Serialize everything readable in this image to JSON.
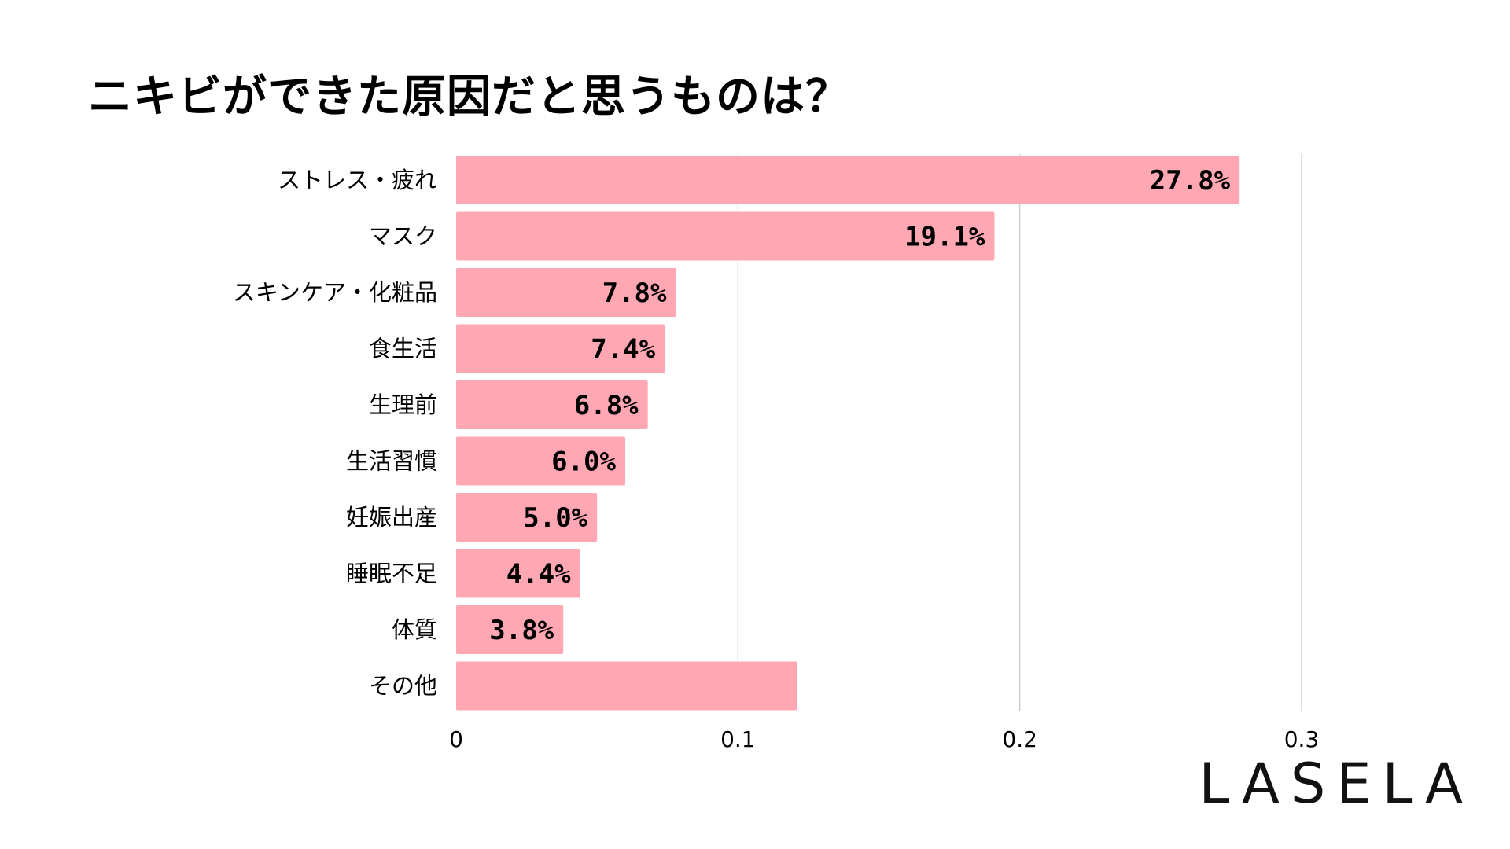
{
  "chart_data": {
    "type": "bar",
    "orientation": "horizontal",
    "title": "ニキビができた原因だと思うものは？",
    "categories": [
      "ストレス・疲れ",
      "マスク",
      "スキンケア・化粧品",
      "食生活",
      "生理前",
      "生活習慣",
      "妊娠出産",
      "睡眠不足",
      "体質",
      "その他"
    ],
    "values": [
      0.278,
      0.191,
      0.078,
      0.074,
      0.068,
      0.06,
      0.05,
      0.044,
      0.038,
      0.121
    ],
    "data_labels": [
      "27.8%",
      "19.1%",
      "7.8%",
      "7.4%",
      "6.8%",
      "6.0%",
      "5.0%",
      "4.4%",
      "3.8%",
      ""
    ],
    "xlim": [
      0,
      0.3
    ],
    "xticks": [
      0,
      0.1,
      0.2,
      0.3
    ],
    "xtick_labels": [
      "0",
      "0.1",
      "0.2",
      "0.3"
    ],
    "xlabel": "",
    "ylabel": "",
    "grid": "vertical",
    "bar_color": "#ffa8b4",
    "grid_color": "#cccccc"
  },
  "brand": {
    "logo": "LASELA"
  }
}
